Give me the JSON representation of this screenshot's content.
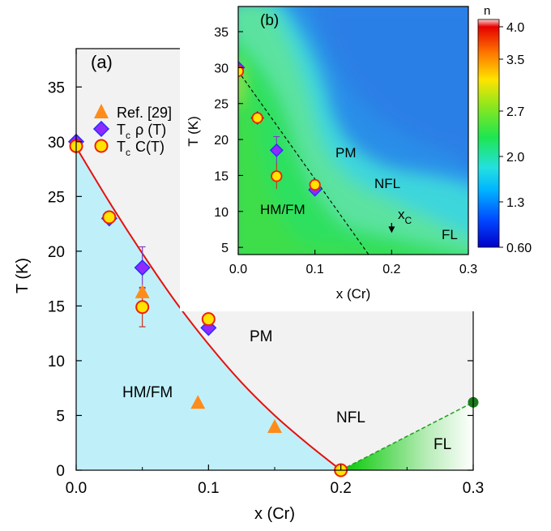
{
  "chart_data": [
    {
      "panel": "(a)",
      "type": "scatter",
      "xlabel": "x (Cr)",
      "ylabel": "T (K)",
      "xlim": [
        0.0,
        0.3
      ],
      "ylim": [
        0,
        38.5
      ],
      "xticks": [
        "0.0",
        "0.1",
        "0.2",
        "0.3"
      ],
      "yticks": [
        "0",
        "5",
        "10",
        "15",
        "20",
        "25",
        "30",
        "35"
      ],
      "legend_position": "top-left",
      "series": [
        {
          "name": "Ref. [29]",
          "marker": "triangle",
          "color": "#ff8c1a",
          "points": [
            [
              0.05,
              16.3
            ],
            [
              0.092,
              6.2
            ],
            [
              0.15,
              4.0
            ]
          ]
        },
        {
          "legend_parts": [
            "T",
            "c",
            "ρ (T)"
          ],
          "marker": "diamond",
          "color": "#8f2bff",
          "points": [
            [
              0.0,
              30.0
            ],
            [
              0.025,
              23.0
            ],
            [
              0.05,
              18.5
            ],
            [
              0.1,
              13.0
            ]
          ],
          "errors": [
            0,
            0,
            1.9,
            0
          ]
        },
        {
          "legend_parts": [
            "T",
            "c",
            "C(T)"
          ],
          "marker": "circle",
          "color": "#ffe400",
          "points": [
            [
              0.0,
              29.6
            ],
            [
              0.025,
              23.1
            ],
            [
              0.05,
              14.9
            ],
            [
              0.1,
              13.8
            ],
            [
              0.2,
              0.0
            ]
          ],
          "errors": [
            0,
            0,
            1.8,
            0,
            0
          ]
        }
      ],
      "phase_boundary": [
        [
          0.0,
          29.5
        ],
        [
          0.025,
          24.5
        ],
        [
          0.05,
          19.8
        ],
        [
          0.075,
          15.4
        ],
        [
          0.1,
          11.5
        ],
        [
          0.125,
          8.0
        ],
        [
          0.15,
          5.0
        ],
        [
          0.175,
          2.4
        ],
        [
          0.2,
          0.0
        ]
      ],
      "fl_boundary": [
        [
          0.2,
          0.0
        ],
        [
          0.3,
          6.2
        ]
      ],
      "fl_endpoint": [
        0.3,
        6.2
      ],
      "region_labels": [
        "PM",
        "HM/FM",
        "NFL",
        "FL"
      ],
      "panel_label": "(a)"
    },
    {
      "panel": "(b)",
      "type": "heatmap",
      "xlabel": "x (Cr)",
      "ylabel": "T (K)",
      "xlim": [
        0.0,
        0.3
      ],
      "ylim": [
        4,
        38.5
      ],
      "xticks": [
        "0.0",
        "0.1",
        "0.2",
        "0.3"
      ],
      "yticks": [
        "5",
        "10",
        "15",
        "20",
        "25",
        "30",
        "35"
      ],
      "colorbar": {
        "label": "n",
        "min": 0.6,
        "max": 4.0,
        "ticks": [
          "4.0",
          "3.5",
          "2.7",
          "2.0",
          "1.3",
          "0.60"
        ]
      },
      "points_rho": [
        [
          0.0,
          30.0
        ],
        [
          0.025,
          23.0
        ],
        [
          0.05,
          18.5
        ],
        [
          0.1,
          13.0
        ]
      ],
      "points_C": [
        [
          0.0,
          29.5
        ],
        [
          0.025,
          23.0
        ],
        [
          0.05,
          14.9
        ],
        [
          0.1,
          13.7
        ]
      ],
      "dashed_line": [
        [
          0.0,
          29.5
        ],
        [
          0.17,
          4.0
        ]
      ],
      "xc_arrow": [
        0.2,
        7.0
      ],
      "region_labels": [
        "PM",
        "NFL",
        "HM/FM",
        "FL"
      ],
      "xc_label": [
        "x",
        "C"
      ],
      "panel_label": "(b)"
    }
  ]
}
